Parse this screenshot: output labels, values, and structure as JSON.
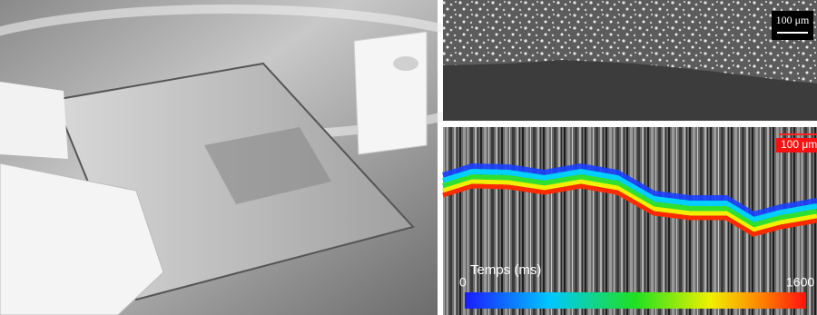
{
  "panels": {
    "top_right": {
      "scale_bar": "100 μm"
    },
    "bottom_right": {
      "scale_bar": "100 μm",
      "colorbar": {
        "label": "Temps (ms)",
        "min": "0",
        "max": "1600"
      }
    }
  }
}
